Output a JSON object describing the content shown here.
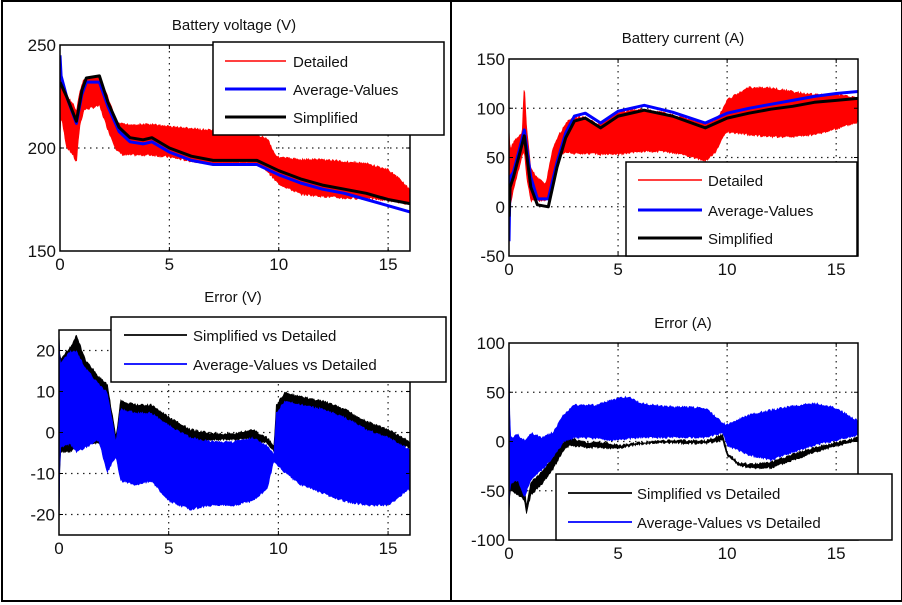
{
  "chart_data": [
    {
      "id": "battery-voltage",
      "type": "line",
      "title": "Battery voltage (V)",
      "xlabel": "",
      "ylabel": "",
      "xlim": [
        0,
        16
      ],
      "ylim": [
        150,
        250
      ],
      "xticks": [
        0,
        5,
        10,
        15
      ],
      "yticks": [
        150,
        200,
        250
      ],
      "xtick_labels": [
        "0",
        "5",
        "10",
        "15"
      ],
      "ytick_labels": [
        "150",
        "200",
        "250"
      ],
      "grid": true,
      "legend_position": "top-right",
      "series": [
        {
          "name": "Detailed",
          "style": "band",
          "color": "#ff0000",
          "x": [
            0,
            0.05,
            0.3,
            0.6,
            0.75,
            0.9,
            1.1,
            1.5,
            1.8,
            2.2,
            2.6,
            2.9,
            3.5,
            4.2,
            5,
            6,
            7,
            8,
            9,
            9.5,
            9.8,
            10,
            11,
            12,
            13,
            14,
            15,
            15.6,
            16
          ],
          "upper": [
            249,
            232,
            226,
            222,
            218,
            228,
            234,
            235,
            235,
            225,
            213,
            212,
            212,
            212,
            211,
            210,
            209,
            208,
            207,
            205,
            198,
            196,
            195,
            195,
            194,
            193,
            190,
            185,
            180
          ],
          "lower": [
            205,
            215,
            200,
            196,
            192,
            210,
            218,
            219,
            220,
            208,
            198,
            196,
            196,
            196,
            195,
            193,
            192,
            192,
            192,
            188,
            184,
            182,
            177,
            176,
            175,
            175,
            174,
            173,
            172
          ]
        },
        {
          "name": "Average-Values",
          "style": "line",
          "color": "#0000ff",
          "x": [
            0,
            0.05,
            0.3,
            0.75,
            1.0,
            1.2,
            1.8,
            2.2,
            2.7,
            3.2,
            3.8,
            4.2,
            5,
            6,
            7,
            8,
            9,
            10,
            11,
            12,
            13,
            14,
            15,
            16
          ],
          "y": [
            245,
            235,
            225,
            212,
            226,
            232,
            232,
            220,
            208,
            203,
            202,
            203,
            198,
            194,
            192,
            192,
            192,
            187,
            183,
            180,
            178,
            175,
            172,
            169
          ]
        },
        {
          "name": "Simplified",
          "style": "line",
          "color": "#000000",
          "x": [
            0,
            0.3,
            0.75,
            1.0,
            1.2,
            1.8,
            2.2,
            2.7,
            3.2,
            3.8,
            4.2,
            5,
            6,
            7,
            8,
            9,
            10,
            11,
            12,
            13,
            14,
            15,
            16
          ],
          "y": [
            232,
            225,
            213,
            228,
            234,
            235,
            222,
            210,
            205,
            204,
            205,
            200,
            196,
            194,
            194,
            194,
            189,
            185,
            182,
            180,
            178,
            175,
            173
          ]
        }
      ]
    },
    {
      "id": "battery-current",
      "type": "line",
      "title": "Battery current (A)",
      "xlabel": "",
      "ylabel": "",
      "xlim": [
        0,
        16
      ],
      "ylim": [
        -50,
        150
      ],
      "xticks": [
        0,
        5,
        10,
        15
      ],
      "yticks": [
        -50,
        0,
        50,
        100,
        150
      ],
      "xtick_labels": [
        "0",
        "5",
        "10",
        "15"
      ],
      "ytick_labels": [
        "-50",
        "0",
        "50",
        "100",
        "150"
      ],
      "grid": true,
      "legend_position": "bottom-right",
      "series": [
        {
          "name": "Detailed",
          "style": "band",
          "color": "#ff0000",
          "x": [
            0,
            0.05,
            0.3,
            0.6,
            0.7,
            0.8,
            1.0,
            1.3,
            1.7,
            2.0,
            2.3,
            2.7,
            3.0,
            3.5,
            4.0,
            4.2,
            5,
            6,
            7,
            8,
            9,
            9.5,
            9.8,
            10,
            11,
            12,
            13,
            14,
            15,
            16
          ],
          "upper": [
            80,
            60,
            70,
            75,
            127,
            85,
            40,
            30,
            25,
            60,
            75,
            88,
            92,
            92,
            86,
            85,
            97,
            100,
            97,
            92,
            85,
            90,
            100,
            110,
            122,
            122,
            118,
            115,
            115,
            112
          ],
          "lower": [
            -50,
            0,
            25,
            50,
            55,
            30,
            5,
            5,
            5,
            25,
            50,
            55,
            53,
            53,
            53,
            52,
            52,
            55,
            55,
            52,
            45,
            55,
            70,
            75,
            72,
            70,
            70,
            72,
            78,
            85
          ]
        },
        {
          "name": "Average-Values",
          "style": "line",
          "color": "#0000ff",
          "x": [
            0,
            0.05,
            0.2,
            0.5,
            0.7,
            1.0,
            1.3,
            1.8,
            2.2,
            2.6,
            3.0,
            3.5,
            4.2,
            5,
            6.2,
            7.5,
            9,
            10,
            11,
            12,
            13,
            14,
            15,
            16
          ],
          "y": [
            -35,
            30,
            35,
            60,
            78,
            30,
            8,
            8,
            45,
            75,
            92,
            95,
            85,
            97,
            103,
            96,
            85,
            95,
            100,
            104,
            108,
            112,
            115,
            117
          ]
        },
        {
          "name": "Simplified",
          "style": "line",
          "color": "#000000",
          "x": [
            0,
            0.05,
            0.2,
            0.5,
            0.7,
            1.0,
            1.3,
            1.8,
            2.2,
            2.6,
            3.0,
            3.5,
            4.2,
            5,
            6.2,
            7.5,
            9,
            10,
            11,
            12,
            13,
            14,
            15,
            16
          ],
          "y": [
            -10,
            20,
            30,
            55,
            72,
            20,
            2,
            0,
            40,
            70,
            87,
            90,
            80,
            92,
            98,
            92,
            80,
            90,
            95,
            99,
            102,
            106,
            108,
            110
          ]
        }
      ]
    },
    {
      "id": "error-voltage",
      "type": "line",
      "title": "Error (V)",
      "xlabel": "",
      "ylabel": "",
      "xlim": [
        0,
        16
      ],
      "ylim": [
        -25,
        25
      ],
      "xticks": [
        0,
        5,
        10,
        15
      ],
      "yticks": [
        -20,
        -10,
        0,
        10,
        20
      ],
      "xtick_labels": [
        "0",
        "5",
        "10",
        "15"
      ],
      "ytick_labels": [
        "-20",
        "-10",
        "0",
        "10",
        "20"
      ],
      "grid": true,
      "legend_position": "top-right",
      "series": [
        {
          "name": "Simplified vs Detailed",
          "style": "band",
          "color": "#000000",
          "x": [
            0,
            0.05,
            0.5,
            0.8,
            1.2,
            1.8,
            2.2,
            2.6,
            2.8,
            3.5,
            4.2,
            5,
            6,
            7,
            8,
            8.8,
            9.5,
            9.8,
            9.9,
            10.3,
            11,
            12,
            13,
            14,
            15,
            16
          ],
          "upper": [
            25,
            18,
            21,
            24,
            18,
            14,
            12,
            -1,
            8,
            7,
            7,
            4,
            1,
            0,
            0,
            1,
            -1,
            -3,
            7,
            10,
            9,
            8,
            6,
            3,
            1,
            -2
          ],
          "lower": [
            -25,
            -5,
            -5,
            -4,
            -3,
            -3,
            -5,
            -2,
            -2,
            -3,
            -4,
            -5,
            -3,
            -2,
            -2,
            -2,
            -3,
            -5,
            -4,
            -4,
            -4,
            -3,
            -3,
            -3,
            -3,
            -4
          ]
        },
        {
          "name": "Average-Values vs Detailed",
          "style": "band",
          "color": "#0000ff",
          "x": [
            0,
            0.05,
            0.5,
            0.8,
            1.2,
            1.8,
            2.2,
            2.6,
            2.8,
            3.5,
            4.2,
            5,
            6,
            7,
            8,
            8.8,
            9.5,
            9.8,
            9.9,
            10.3,
            11,
            12,
            13,
            14,
            15,
            16
          ],
          "upper": [
            25,
            17,
            20,
            20,
            16,
            12,
            10,
            -2,
            6,
            5,
            5,
            2,
            -1,
            -2,
            -2,
            -1,
            -3,
            -5,
            5,
            8,
            7,
            6,
            4,
            1,
            -1,
            -4
          ],
          "lower": [
            -25,
            -4,
            -3,
            -5,
            -4,
            -2,
            -10,
            -6,
            -12,
            -13,
            -12,
            -17,
            -19,
            -18,
            -18,
            -17,
            -14,
            -7,
            -8,
            -10,
            -13,
            -15,
            -17,
            -18,
            -18,
            -14
          ]
        }
      ]
    },
    {
      "id": "error-current",
      "type": "line",
      "title": "Error (A)",
      "xlabel": "",
      "ylabel": "",
      "xlim": [
        0,
        16
      ],
      "ylim": [
        -100,
        100
      ],
      "xticks": [
        0,
        5,
        10,
        15
      ],
      "yticks": [
        -100,
        -50,
        0,
        50,
        100
      ],
      "xtick_labels": [
        "0",
        "5",
        "10",
        "15"
      ],
      "ytick_labels": [
        "-100",
        "-50",
        "0",
        "50",
        "100"
      ],
      "grid": true,
      "legend_position": "bottom-right",
      "series": [
        {
          "name": "Simplified vs Detailed",
          "style": "band",
          "color": "#000000",
          "x": [
            0,
            0.05,
            0.4,
            0.7,
            0.8,
            1.0,
            1.5,
            2.0,
            2.5,
            2.8,
            3.5,
            4.5,
            5,
            6,
            7,
            8,
            9,
            9.8,
            10,
            10.5,
            11,
            12,
            13,
            14,
            15,
            16
          ],
          "upper": [
            100,
            0,
            -20,
            -40,
            -65,
            -40,
            -30,
            -15,
            0,
            5,
            0,
            0,
            -3,
            0,
            2,
            2,
            2,
            8,
            -10,
            -20,
            -22,
            -20,
            -12,
            -5,
            0,
            5
          ],
          "lower": [
            -80,
            -50,
            -55,
            -60,
            -75,
            -55,
            -45,
            -30,
            -10,
            -5,
            -7,
            -8,
            -8,
            -4,
            -2,
            -3,
            -3,
            0,
            -15,
            -25,
            -28,
            -28,
            -20,
            -12,
            -6,
            0
          ]
        },
        {
          "name": "Average-Values vs Detailed",
          "style": "band",
          "color": "#0000ff",
          "x": [
            0,
            0.05,
            0.4,
            0.7,
            1.0,
            1.5,
            2.0,
            2.5,
            3.0,
            4.0,
            5,
            5.5,
            6,
            7,
            8,
            9,
            9.8,
            10,
            11,
            12,
            13,
            14,
            15,
            16
          ],
          "upper": [
            100,
            5,
            8,
            2,
            10,
            5,
            10,
            28,
            38,
            38,
            45,
            47,
            40,
            37,
            36,
            35,
            20,
            18,
            28,
            33,
            37,
            40,
            35,
            22
          ],
          "lower": [
            -75,
            -45,
            -40,
            -58,
            -40,
            -30,
            -18,
            -2,
            3,
            2,
            0,
            2,
            3,
            3,
            3,
            3,
            8,
            -5,
            -15,
            -20,
            -12,
            -5,
            0,
            5
          ]
        }
      ]
    }
  ]
}
